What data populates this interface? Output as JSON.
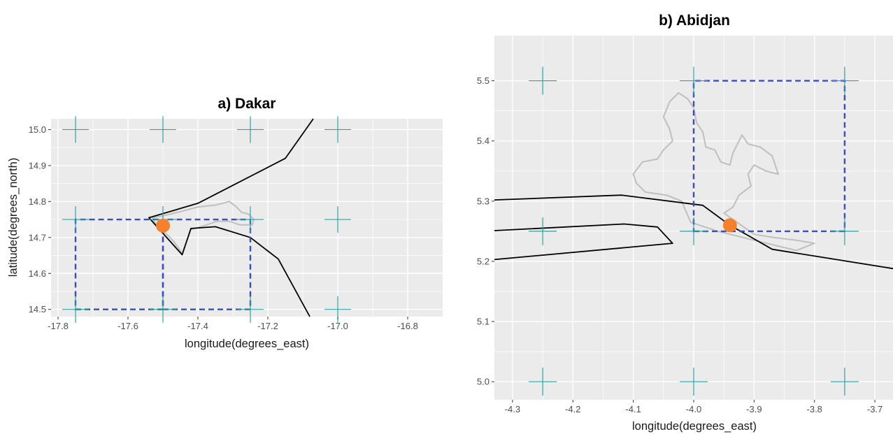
{
  "colors": {
    "panel_bg": "#ebebeb",
    "grid": "#ffffff",
    "coast": "#000000",
    "outline": "#bfbfbf",
    "box": "#3a4cc0",
    "cross": "#2aa5a5",
    "point": "#f5822a"
  },
  "chart_data": [
    {
      "type": "map",
      "title": "a) Dakar",
      "xlabel": "longitude(degrees_east)",
      "ylabel": "latitude(degrees_north)",
      "xlim": [
        -17.82,
        -16.7
      ],
      "ylim": [
        14.48,
        15.03
      ],
      "xticks": [
        -17.8,
        -17.6,
        -17.4,
        -17.2,
        -17.0,
        -16.8
      ],
      "xtick_labels": [
        "-17.8",
        "-17.6",
        "-17.4",
        "-17.2",
        "-17.0",
        "-16.8"
      ],
      "yticks": [
        14.5,
        14.6,
        14.7,
        14.8,
        14.9,
        15.0
      ],
      "ytick_labels": [
        "14.5",
        "14.6",
        "14.7",
        "14.8",
        "14.9",
        "15.0"
      ],
      "grid": true,
      "crosses": [
        [
          -17.75,
          15.0
        ],
        [
          -17.5,
          15.0
        ],
        [
          -17.25,
          15.0
        ],
        [
          -17.0,
          15.0
        ],
        [
          -17.75,
          14.75
        ],
        [
          -17.5,
          14.75
        ],
        [
          -17.25,
          14.75
        ],
        [
          -17.0,
          14.75
        ],
        [
          -17.75,
          14.5
        ],
        [
          -17.5,
          14.5
        ],
        [
          -17.25,
          14.5
        ],
        [
          -17.0,
          14.5
        ]
      ],
      "dashed_boxes": [
        [
          [
            -17.75,
            14.5
          ],
          [
            -17.5,
            14.5
          ],
          [
            -17.5,
            14.75
          ],
          [
            -17.75,
            14.75
          ]
        ],
        [
          [
            -17.5,
            14.5
          ],
          [
            -17.25,
            14.5
          ],
          [
            -17.25,
            14.75
          ],
          [
            -17.5,
            14.75
          ]
        ]
      ],
      "city_point": [
        -17.5,
        14.733
      ],
      "coastline": [
        [
          [
            -17.07,
            15.03
          ],
          [
            -17.15,
            14.92
          ],
          [
            -17.4,
            14.795
          ],
          [
            -17.54,
            14.755
          ],
          [
            -17.445,
            14.652
          ],
          [
            -17.42,
            14.725
          ],
          [
            -17.35,
            14.73
          ],
          [
            -17.25,
            14.7
          ],
          [
            -17.17,
            14.64
          ],
          [
            -17.08,
            14.48
          ]
        ]
      ],
      "outline_region": [
        [
          [
            -17.53,
            14.755
          ],
          [
            -17.5,
            14.76
          ],
          [
            -17.45,
            14.772
          ],
          [
            -17.4,
            14.785
          ],
          [
            -17.35,
            14.79
          ],
          [
            -17.31,
            14.8
          ],
          [
            -17.29,
            14.785
          ],
          [
            -17.275,
            14.77
          ],
          [
            -17.255,
            14.765
          ],
          [
            -17.24,
            14.75
          ],
          [
            -17.245,
            14.735
          ],
          [
            -17.28,
            14.735
          ],
          [
            -17.31,
            14.745
          ],
          [
            -17.345,
            14.745
          ],
          [
            -17.39,
            14.73
          ],
          [
            -17.42,
            14.722
          ],
          [
            -17.432,
            14.69
          ],
          [
            -17.445,
            14.655
          ],
          [
            -17.455,
            14.67
          ],
          [
            -17.47,
            14.69
          ],
          [
            -17.49,
            14.71
          ],
          [
            -17.52,
            14.735
          ],
          [
            -17.53,
            14.755
          ]
        ]
      ]
    },
    {
      "type": "map",
      "title": "b) Abidjan",
      "xlabel": "longitude(degrees_east)",
      "ylabel": "",
      "xlim": [
        -4.33,
        -3.67
      ],
      "ylim": [
        4.97,
        5.575
      ],
      "xticks": [
        -4.3,
        -4.2,
        -4.1,
        -4.0,
        -3.9,
        -3.8,
        -3.7
      ],
      "xtick_labels": [
        "-4.3",
        "-4.2",
        "-4.1",
        "-4.0",
        "-3.9",
        "-3.8",
        "-3.7"
      ],
      "yticks": [
        5.0,
        5.1,
        5.2,
        5.3,
        5.4,
        5.5
      ],
      "ytick_labels": [
        "5.0",
        "5.1",
        "5.2",
        "5.3",
        "5.4",
        "5.5"
      ],
      "grid": true,
      "crosses": [
        [
          -4.25,
          5.5
        ],
        [
          -4.0,
          5.5
        ],
        [
          -3.75,
          5.5
        ],
        [
          -4.25,
          5.25
        ],
        [
          -4.0,
          5.25
        ],
        [
          -3.75,
          5.25
        ],
        [
          -4.25,
          5.0
        ],
        [
          -4.0,
          5.0
        ],
        [
          -3.75,
          5.0
        ]
      ],
      "dashed_boxes": [
        [
          [
            -4.0,
            5.25
          ],
          [
            -3.75,
            5.25
          ],
          [
            -3.75,
            5.5
          ],
          [
            -4.0,
            5.5
          ]
        ]
      ],
      "city_point": [
        -3.94,
        5.26
      ],
      "coastline": [
        [
          [
            -4.33,
            5.302
          ],
          [
            -4.12,
            5.31
          ],
          [
            -3.985,
            5.293
          ],
          [
            -3.94,
            5.26
          ],
          [
            -3.91,
            5.243
          ],
          [
            -3.87,
            5.22
          ],
          [
            -3.67,
            5.188
          ]
        ],
        [
          [
            -4.33,
            5.251
          ],
          [
            -4.115,
            5.262
          ],
          [
            -4.06,
            5.257
          ],
          [
            -4.035,
            5.23
          ],
          [
            -4.33,
            5.203
          ]
        ]
      ],
      "outline_region": [
        [
          [
            -4.0,
            5.455
          ],
          [
            -3.995,
            5.43
          ],
          [
            -3.985,
            5.415
          ],
          [
            -3.98,
            5.39
          ],
          [
            -3.965,
            5.385
          ],
          [
            -3.955,
            5.365
          ],
          [
            -3.94,
            5.36
          ],
          [
            -3.935,
            5.38
          ],
          [
            -3.925,
            5.4
          ],
          [
            -3.92,
            5.41
          ],
          [
            -3.91,
            5.395
          ],
          [
            -3.89,
            5.39
          ],
          [
            -3.87,
            5.375
          ],
          [
            -3.86,
            5.345
          ],
          [
            -3.88,
            5.35
          ],
          [
            -3.9,
            5.36
          ],
          [
            -3.91,
            5.345
          ],
          [
            -3.905,
            5.325
          ],
          [
            -3.925,
            5.31
          ],
          [
            -3.935,
            5.29
          ],
          [
            -3.95,
            5.28
          ],
          [
            -3.9,
            5.245
          ],
          [
            -3.87,
            5.24
          ],
          [
            -3.83,
            5.235
          ],
          [
            -3.8,
            5.23
          ],
          [
            -3.83,
            5.218
          ],
          [
            -3.9,
            5.235
          ],
          [
            -3.96,
            5.25
          ],
          [
            -4.005,
            5.265
          ],
          [
            -4.02,
            5.3
          ],
          [
            -4.045,
            5.31
          ],
          [
            -4.08,
            5.315
          ],
          [
            -4.095,
            5.33
          ],
          [
            -4.1,
            5.345
          ],
          [
            -4.085,
            5.365
          ],
          [
            -4.06,
            5.37
          ],
          [
            -4.05,
            5.385
          ],
          [
            -4.035,
            5.4
          ],
          [
            -4.04,
            5.42
          ],
          [
            -4.05,
            5.44
          ],
          [
            -4.04,
            5.465
          ],
          [
            -4.025,
            5.48
          ],
          [
            -4.01,
            5.47
          ],
          [
            -4.0,
            5.455
          ]
        ]
      ]
    }
  ]
}
